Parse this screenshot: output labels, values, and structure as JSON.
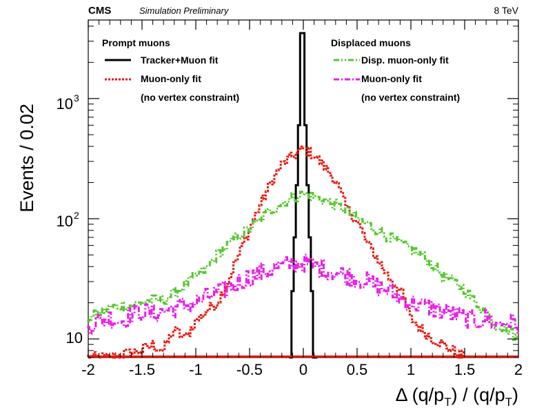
{
  "header": {
    "experiment": "CMS",
    "status": "Simulation Preliminary",
    "energy": "8 TeV"
  },
  "chart_data": {
    "type": "line",
    "xlabel": {
      "prefix": "Δ (q/p",
      "sub1": "T",
      "middle": ") / (q/p",
      "sub2": "T",
      "suffix": ")"
    },
    "ylabel": "Events / 0.02",
    "xlim": [
      -2,
      2
    ],
    "ylim": [
      7,
      4500
    ],
    "yscale": "log",
    "x_ticks": [
      -2,
      -1.5,
      -1,
      -0.5,
      0,
      0.5,
      1,
      1.5,
      2
    ],
    "x_tick_labels": [
      "-2",
      "-1.5",
      "-1",
      "-0.5",
      "0",
      "0.5",
      "1",
      "1.5",
      "2"
    ],
    "y_ticks": [
      10,
      100,
      1000
    ],
    "y_tick_labels": {
      "y10": "10",
      "y100": "10",
      "y100_exp": "2",
      "y1000": "10",
      "y1000_exp": "3"
    },
    "bin_width": 0.02,
    "grid": false,
    "legend": {
      "left_title": "Prompt muons",
      "right_title": "Displaced muons",
      "left_entries": [
        {
          "series": "tracker_muon",
          "label": "Tracker+Muon fit"
        },
        {
          "series": "prompt_muon_only",
          "label": "Muon-only fit",
          "note": "(no vertex constraint)"
        }
      ],
      "right_entries": [
        {
          "series": "disp_muon_only",
          "label": "Disp. muon-only fit"
        },
        {
          "series": "displaced_muon_only",
          "label": "Muon-only fit",
          "note": "(no vertex constraint)"
        }
      ]
    },
    "series": [
      {
        "id": "tracker_muon",
        "color": "#000000",
        "style": "solid-step",
        "x": [
          -0.12,
          -0.1,
          -0.08,
          -0.06,
          -0.04,
          -0.02,
          0.0,
          0.02,
          0.04,
          0.06,
          0.08,
          0.1,
          0.12
        ],
        "y": [
          7,
          25,
          70,
          190,
          600,
          3500,
          3500,
          600,
          190,
          70,
          25,
          7,
          7
        ]
      },
      {
        "id": "prompt_muon_only",
        "color": "#e8160c",
        "style": "dotted-step",
        "x": [
          -2.0,
          -1.8,
          -1.5,
          -1.4,
          -1.3,
          -1.2,
          -1.1,
          -1.0,
          -0.9,
          -0.8,
          -0.7,
          -0.6,
          -0.5,
          -0.4,
          -0.3,
          -0.2,
          -0.1,
          0.0,
          0.1,
          0.2,
          0.3,
          0.4,
          0.5,
          0.6,
          0.7,
          0.8,
          0.9,
          1.0,
          1.1,
          1.2,
          1.3,
          1.4,
          1.5
        ],
        "y": [
          7,
          7,
          8,
          9,
          8,
          12,
          10,
          14,
          17,
          20,
          30,
          50,
          82,
          130,
          200,
          280,
          330,
          380,
          340,
          270,
          210,
          125,
          95,
          62,
          45,
          32,
          26,
          15,
          12,
          10,
          9,
          8,
          7
        ]
      },
      {
        "id": "disp_muon_only",
        "color": "#52c72a",
        "style": "dash-dot-dot-step",
        "x": [
          -2.0,
          -1.9,
          -1.8,
          -1.7,
          -1.6,
          -1.5,
          -1.4,
          -1.3,
          -1.2,
          -1.1,
          -1.0,
          -0.9,
          -0.8,
          -0.7,
          -0.6,
          -0.5,
          -0.4,
          -0.3,
          -0.2,
          -0.1,
          0.0,
          0.1,
          0.2,
          0.3,
          0.4,
          0.5,
          0.6,
          0.7,
          0.8,
          0.9,
          1.0,
          1.1,
          1.2,
          1.3,
          1.4,
          1.5,
          1.6,
          1.7,
          1.8,
          1.9,
          2.0
        ],
        "y": [
          15,
          16,
          18,
          19,
          19,
          20,
          21,
          21,
          24,
          28,
          33,
          38,
          50,
          60,
          72,
          82,
          98,
          118,
          135,
          150,
          160,
          152,
          142,
          130,
          118,
          100,
          90,
          80,
          70,
          62,
          56,
          50,
          42,
          33,
          30,
          26,
          20,
          17,
          13,
          12,
          10
        ]
      },
      {
        "id": "displaced_muon_only",
        "color": "#ea1cea",
        "style": "dash-dot-step",
        "x": [
          -2.0,
          -1.9,
          -1.8,
          -1.7,
          -1.6,
          -1.5,
          -1.4,
          -1.3,
          -1.2,
          -1.1,
          -1.0,
          -0.9,
          -0.8,
          -0.7,
          -0.6,
          -0.5,
          -0.4,
          -0.3,
          -0.2,
          -0.1,
          0.0,
          0.1,
          0.2,
          0.3,
          0.4,
          0.5,
          0.6,
          0.7,
          0.8,
          0.9,
          1.0,
          1.1,
          1.2,
          1.3,
          1.4,
          1.5,
          1.6,
          1.7,
          1.8,
          1.9,
          2.0
        ],
        "y": [
          13,
          14,
          15,
          14,
          16,
          17,
          16,
          17,
          18,
          19,
          20,
          22,
          24,
          26,
          30,
          33,
          35,
          38,
          40,
          42,
          43,
          40,
          38,
          36,
          34,
          32,
          30,
          27,
          25,
          22,
          20,
          19,
          18,
          17,
          16,
          15,
          14,
          15,
          13,
          14,
          13
        ]
      }
    ]
  }
}
